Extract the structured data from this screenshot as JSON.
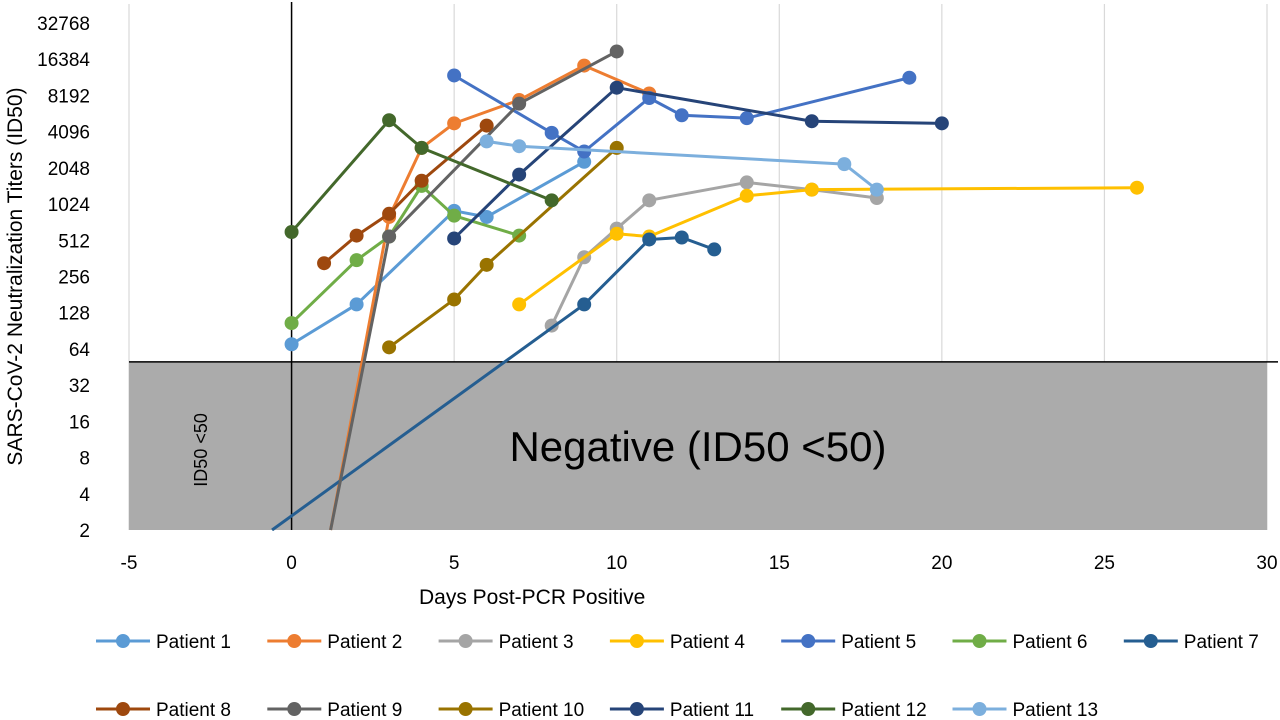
{
  "chart_data": {
    "type": "line",
    "title": "",
    "xlabel": "Days Post-PCR Positive",
    "ylabel": "SARS-CoV-2 Neutralization Titers (ID50)",
    "y_scale": "log2",
    "xlim": [
      -5,
      30
    ],
    "ylim": [
      2,
      32768
    ],
    "x_ticks": [
      "-5",
      "0",
      "5",
      "10",
      "15",
      "20",
      "25",
      "30"
    ],
    "y_ticks": [
      "2",
      "4",
      "8",
      "16",
      "32",
      "64",
      "128",
      "256",
      "512",
      "1024",
      "2048",
      "4096",
      "8192",
      "16384",
      "32768"
    ],
    "grid": "vertical",
    "legend_position": "bottom",
    "annotations": {
      "negative_region_label": "Negative (ID50 <50)",
      "threshold_label": "ID50 <50",
      "threshold_value": 50
    },
    "series": [
      {
        "name": "Patient 1",
        "color": "#5B9BD5",
        "points": [
          [
            0,
            70
          ],
          [
            2,
            150
          ],
          [
            5,
            900
          ],
          [
            6,
            800
          ],
          [
            9,
            2300
          ]
        ]
      },
      {
        "name": "Patient 2",
        "color": "#ED7D31",
        "points": [
          [
            1.2,
            2
          ],
          [
            3,
            800
          ],
          [
            4,
            3000
          ],
          [
            5,
            4800
          ],
          [
            7,
            7500
          ],
          [
            9,
            14500
          ],
          [
            11,
            8500
          ]
        ]
      },
      {
        "name": "Patient 3",
        "color": "#A5A5A5",
        "points": [
          [
            8,
            100
          ],
          [
            9,
            370
          ],
          [
            10,
            640
          ],
          [
            11,
            1100
          ],
          [
            14,
            1550
          ],
          [
            16,
            1350
          ],
          [
            18,
            1150
          ]
        ]
      },
      {
        "name": "Patient 4",
        "color": "#FFC000",
        "points": [
          [
            7,
            150
          ],
          [
            10,
            580
          ],
          [
            11,
            550
          ],
          [
            14,
            1200
          ],
          [
            16,
            1350
          ],
          [
            26,
            1400
          ]
        ]
      },
      {
        "name": "Patient 5",
        "color": "#4472C4",
        "points": [
          [
            5,
            12000
          ],
          [
            8,
            4000
          ],
          [
            9,
            2800
          ],
          [
            11,
            7800
          ],
          [
            12,
            5600
          ],
          [
            14,
            5300
          ],
          [
            19,
            11500
          ]
        ]
      },
      {
        "name": "Patient 6",
        "color": "#70AD47",
        "points": [
          [
            0,
            105
          ],
          [
            2,
            350
          ],
          [
            3,
            550
          ],
          [
            4,
            1450
          ],
          [
            5,
            820
          ],
          [
            7,
            560
          ]
        ]
      },
      {
        "name": "Patient 7",
        "color": "#255E91",
        "points": [
          [
            -0.6,
            2
          ],
          [
            9,
            150
          ],
          [
            11,
            520
          ],
          [
            12,
            540
          ],
          [
            13,
            430
          ]
        ]
      },
      {
        "name": "Patient 8",
        "color": "#9E480E",
        "points": [
          [
            1,
            330
          ],
          [
            2,
            560
          ],
          [
            3,
            850
          ],
          [
            4,
            1600
          ],
          [
            6,
            4600
          ]
        ]
      },
      {
        "name": "Patient 9",
        "color": "#636363",
        "points": [
          [
            1.2,
            2
          ],
          [
            3,
            550
          ],
          [
            7,
            7000
          ],
          [
            10,
            19000
          ]
        ]
      },
      {
        "name": "Patient 10",
        "color": "#997300",
        "points": [
          [
            3,
            66
          ],
          [
            5,
            165
          ],
          [
            6,
            320
          ],
          [
            10,
            3000
          ]
        ]
      },
      {
        "name": "Patient 11",
        "color": "#264478",
        "points": [
          [
            5,
            530
          ],
          [
            7,
            1800
          ],
          [
            10,
            9500
          ],
          [
            16,
            5000
          ],
          [
            20,
            4800
          ]
        ]
      },
      {
        "name": "Patient 12",
        "color": "#43682B",
        "points": [
          [
            0,
            600
          ],
          [
            3,
            5100
          ],
          [
            4,
            3000
          ],
          [
            8,
            1100
          ]
        ]
      },
      {
        "name": "Patient 13",
        "color": "#7CAFDD",
        "points": [
          [
            6,
            3400
          ],
          [
            7,
            3100
          ],
          [
            17,
            2200
          ],
          [
            18,
            1350
          ]
        ]
      }
    ]
  }
}
